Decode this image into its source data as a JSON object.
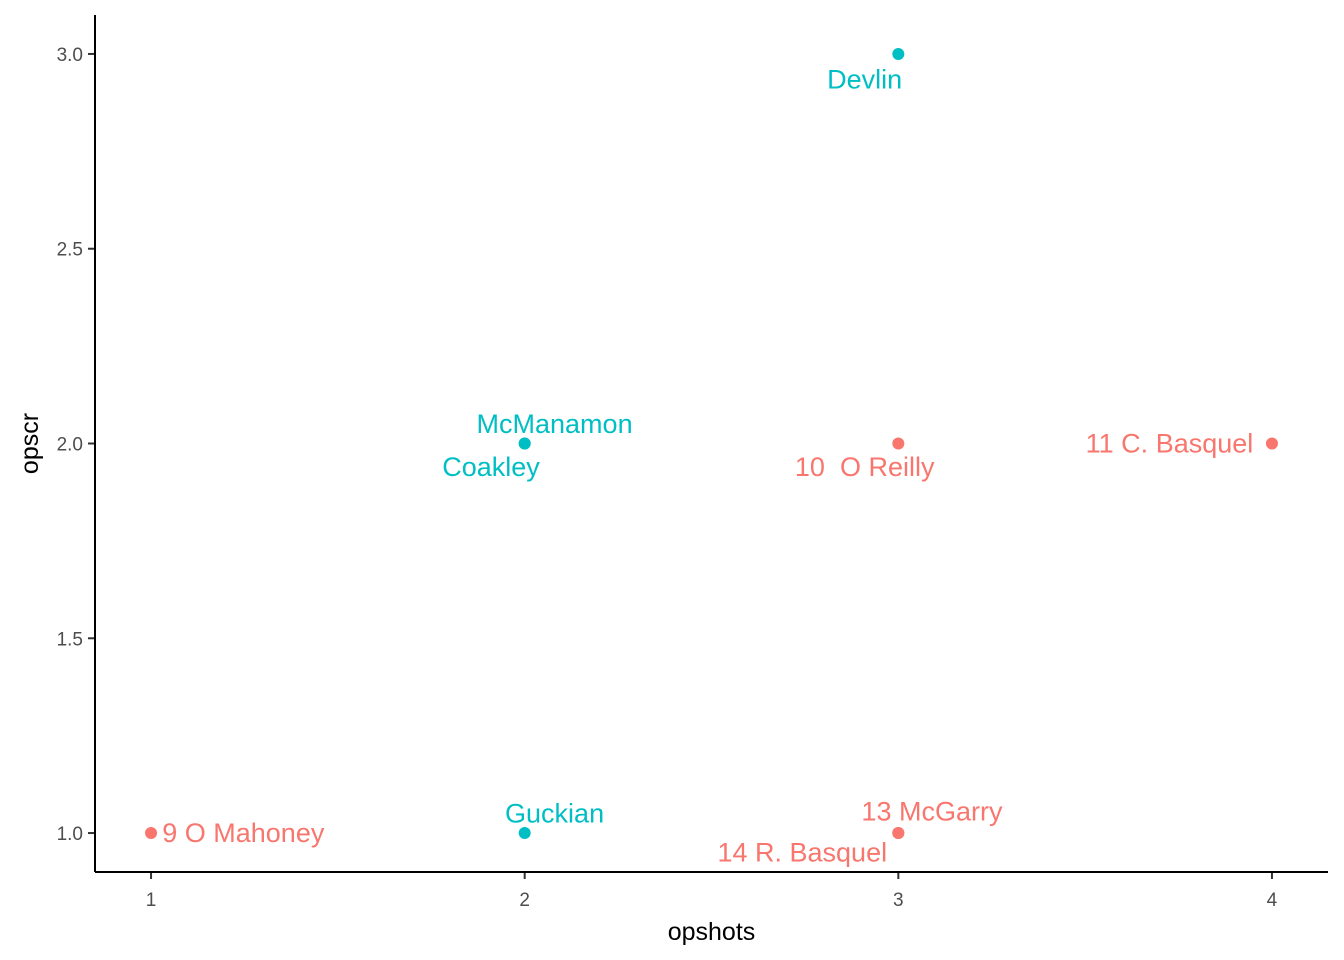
{
  "chart_data": {
    "type": "scatter",
    "title": "",
    "xlabel": "opshots",
    "ylabel": "opscr",
    "xlim": [
      0.85,
      4.15
    ],
    "ylim": [
      0.9,
      3.1
    ],
    "xticks": [
      1,
      2,
      3,
      4
    ],
    "xtick_labels": [
      "1",
      "2",
      "3",
      "4"
    ],
    "yticks": [
      1.0,
      1.5,
      2.0,
      2.5,
      3.0
    ],
    "ytick_labels": [
      "1.0",
      "1.5",
      "2.0",
      "2.5",
      "3.0"
    ],
    "grid": false,
    "legend": "none",
    "groups": [
      {
        "name": "group-a",
        "color": "#F8766D"
      },
      {
        "name": "group-b",
        "color": "#00BFC4"
      }
    ],
    "points": [
      {
        "label": "9 O Mahoney",
        "x": 1,
        "y": 1.0,
        "group": "group-a",
        "label_anchor": "start",
        "label_dx": 0.03,
        "label_dy": 0.0
      },
      {
        "label": "Guckian",
        "x": 2,
        "y": 1.0,
        "group": "group-b",
        "label_anchor": "middle",
        "label_dx": 0.08,
        "label_dy": 0.05
      },
      {
        "label": "13 McGarry",
        "x": 3,
        "y": 1.0,
        "group": "group-a",
        "label_anchor": "middle",
        "label_dx": 0.09,
        "label_dy": 0.055
      },
      {
        "label": "14 R. Basquel",
        "x": 3,
        "y": 1.0,
        "group": "group-a",
        "label_anchor": "end",
        "label_dx": -0.03,
        "label_dy": -0.05
      },
      {
        "label": "McManamon",
        "x": 2,
        "y": 2.0,
        "group": "group-b",
        "label_anchor": "middle",
        "label_dx": 0.08,
        "label_dy": 0.05
      },
      {
        "label": "Coakley",
        "x": 2,
        "y": 2.0,
        "group": "group-b",
        "label_anchor": "middle",
        "label_dx": -0.09,
        "label_dy": -0.06
      },
      {
        "label": "10  O Reilly",
        "x": 3,
        "y": 2.0,
        "group": "group-a",
        "label_anchor": "middle",
        "label_dx": -0.09,
        "label_dy": -0.06
      },
      {
        "label": "11 C. Basquel",
        "x": 4,
        "y": 2.0,
        "group": "group-a",
        "label_anchor": "end",
        "label_dx": -0.05,
        "label_dy": 0.0
      },
      {
        "label": "Devlin",
        "x": 3,
        "y": 3.0,
        "group": "group-b",
        "label_anchor": "middle",
        "label_dx": -0.09,
        "label_dy": -0.065
      }
    ]
  }
}
